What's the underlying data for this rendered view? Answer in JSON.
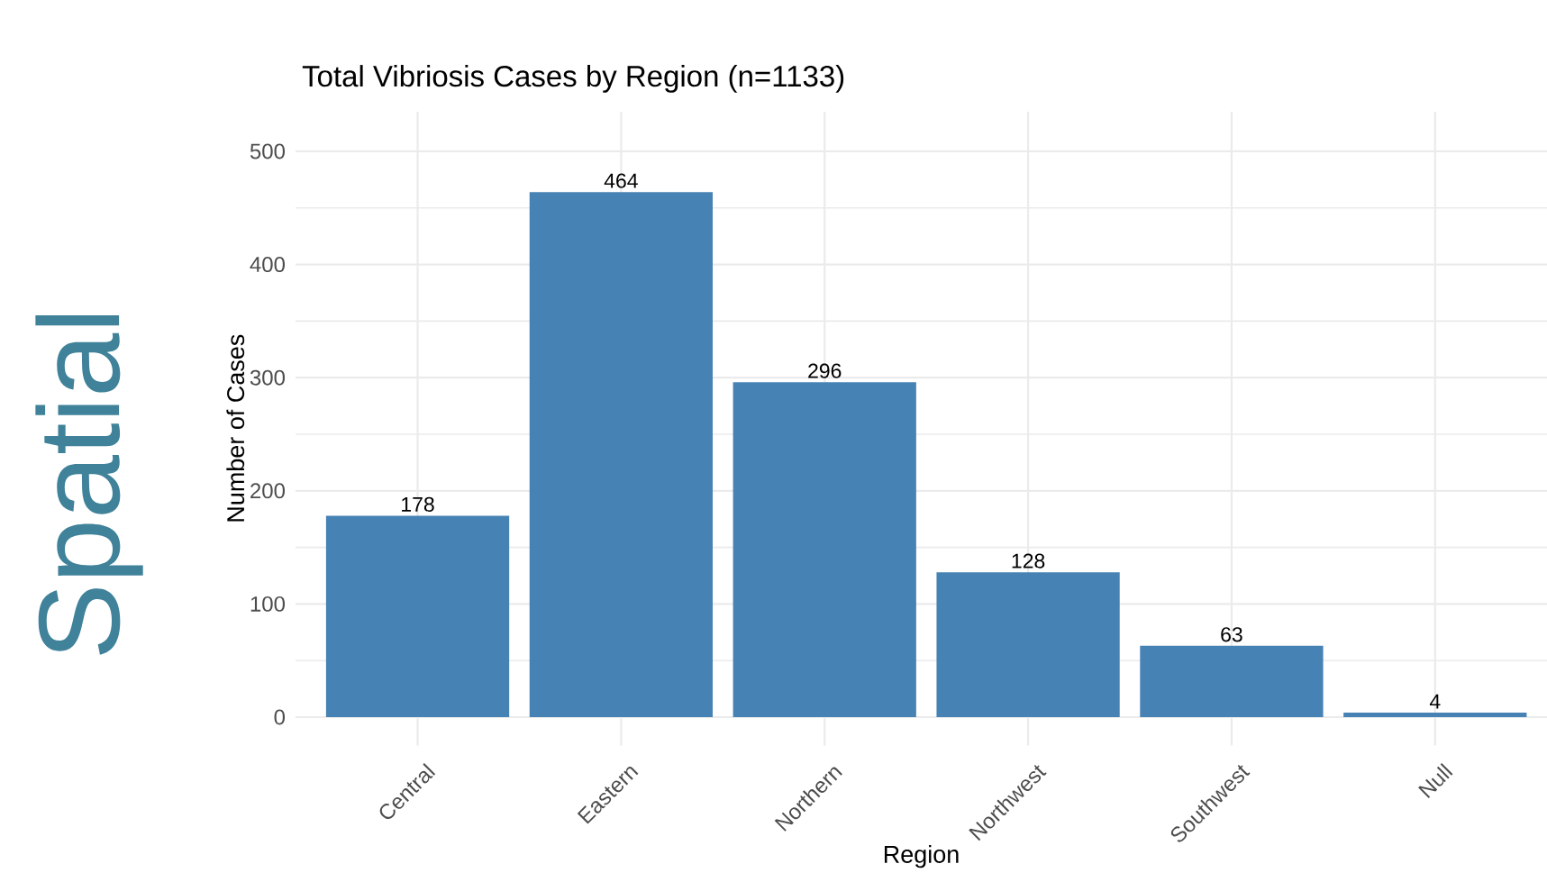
{
  "chart_data": {
    "type": "bar",
    "title": "Total Vibriosis Cases by Region (n=1133)",
    "xlabel": "Region",
    "ylabel": "Number of Cases",
    "categories": [
      "Central",
      "Eastern",
      "Northern",
      "Northwest",
      "Southwest",
      "Null"
    ],
    "values": [
      178,
      464,
      296,
      128,
      63,
      4
    ],
    "color": "#4682b4",
    "ylim": [
      -25,
      535
    ],
    "yticks": [
      0,
      100,
      200,
      300,
      400,
      500
    ],
    "grid": true,
    "data_labels": true,
    "annotations": [
      "Spatial"
    ]
  }
}
